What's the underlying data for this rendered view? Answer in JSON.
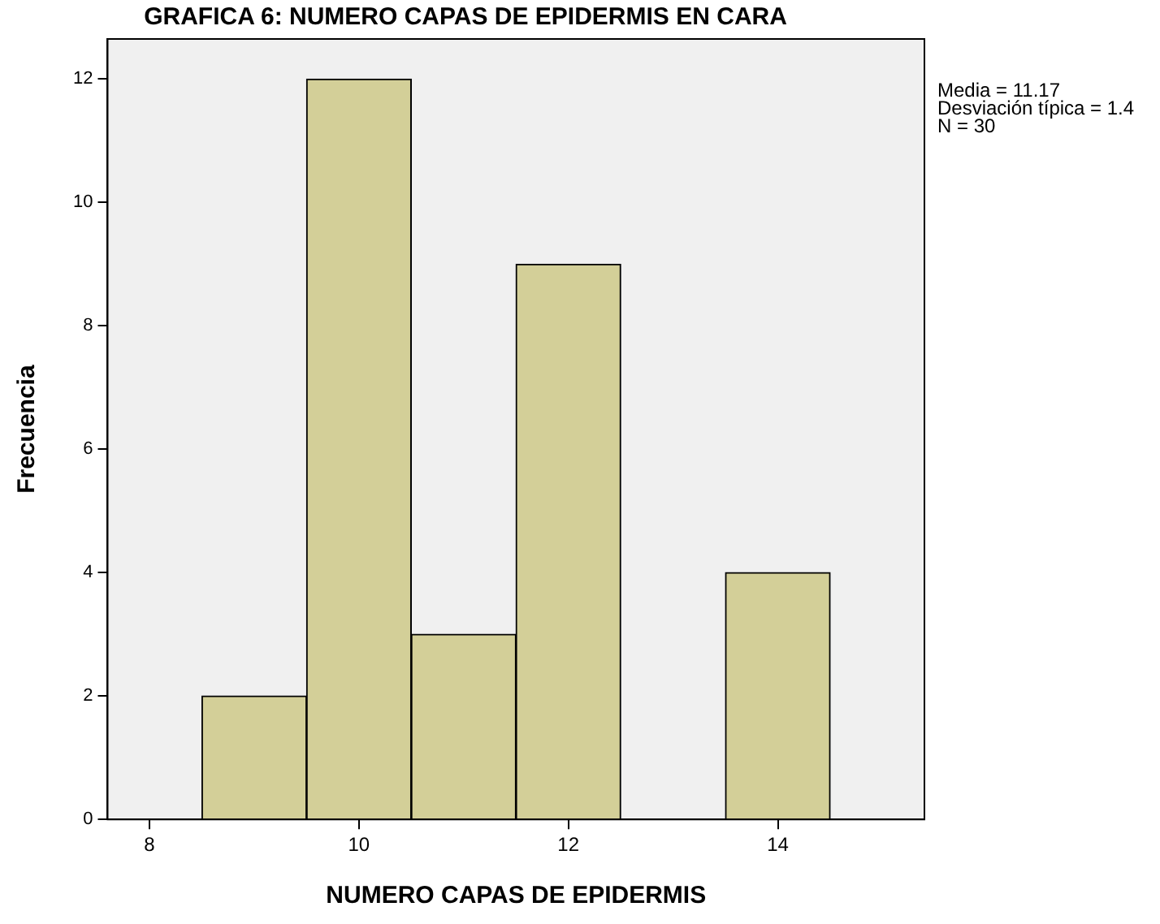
{
  "chart_data": {
    "type": "histogram",
    "title": "GRAFICA 6: NUMERO CAPAS DE EPIDERMIS EN CARA",
    "xlabel": "NUMERO CAPAS DE EPIDERMIS",
    "ylabel": "Frecuencia",
    "bins": [
      8.5,
      9.5,
      10.5,
      11.5,
      12.5,
      13.5,
      14.5
    ],
    "values": [
      2,
      12,
      3,
      9,
      0,
      4
    ],
    "color": "#d3cf98",
    "xlim": [
      7.6,
      15.4
    ],
    "xticks": [
      8,
      10,
      12,
      14
    ],
    "ylim": [
      0,
      12.65
    ],
    "yticks": [
      0,
      2,
      4,
      6,
      8,
      10,
      12
    ],
    "grid": false,
    "legend": false,
    "annotations": [
      "Media = 11.17",
      "Desviación típica = 1.4",
      "N = 30"
    ]
  }
}
